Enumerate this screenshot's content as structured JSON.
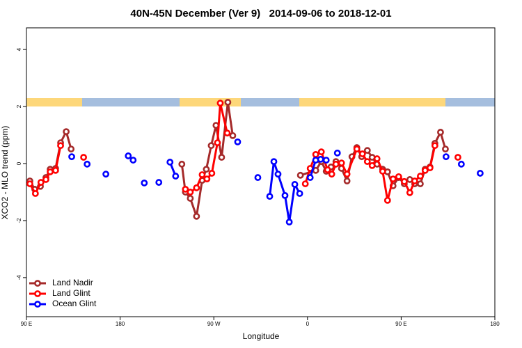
{
  "chart_data": {
    "type": "line",
    "title": "40N-45N December (Ver 9)   2014-09-06 to 2018-12-01",
    "x_label": "Longitude",
    "y_label": "XCO2 - MLO trend (ppm)",
    "xlim": [
      90,
      540
    ],
    "ylim": [
      -5.37,
      4.76
    ],
    "xticks": [
      {
        "value": 90,
        "label": "90 E"
      },
      180,
      {
        "value": 270,
        "label": "90 W"
      },
      {
        "value": 360,
        "label": "0"
      },
      {
        "value": 450,
        "label": "90 E"
      },
      {
        "value": 540,
        "label": "180"
      }
    ],
    "yticks": [
      -4,
      -2,
      0,
      2,
      4
    ],
    "legend": "bottom-left",
    "series": [
      {
        "name": "Land Nadir",
        "color": "#a52a2a",
        "x": [
          93.3,
          98,
          103.4,
          108.7,
          112.8,
          118,
          122.8,
          128.2,
          132.9,
          null,
          239.3,
          242.7,
          247.4,
          253.4,
          258.8,
          262.8,
          267.5,
          272.1,
          277.5,
          283.5,
          288.2,
          null,
          353.2,
          367.9,
          373.3,
          378,
          382.6,
          387.3,
          392.7,
          398,
          402.7,
          407.4,
          412.1,
          417.5,
          422.1,
          426.8,
          432.2,
          436.9,
          442.2,
          447.6,
          453,
          458.3,
          463,
          468.4,
          473,
          477.7,
          482.4,
          487.8,
          492.5
        ],
        "values": [
          -0.61,
          -0.9,
          -0.8,
          -0.49,
          -0.2,
          -0.17,
          0.73,
          1.12,
          0.51,
          null,
          -0.02,
          -1.0,
          -1.22,
          -1.85,
          -0.59,
          -0.2,
          0.63,
          1.34,
          0.22,
          2.15,
          0.98,
          null,
          -0.41,
          -0.24,
          0.07,
          -0.27,
          -0.12,
          0.07,
          -0.17,
          -0.61,
          0.24,
          0.56,
          0.24,
          0.46,
          0.22,
          -0.02,
          -0.2,
          -0.29,
          -0.78,
          -0.49,
          -0.71,
          -0.56,
          -0.71,
          -0.71,
          -0.2,
          -0.12,
          0.71,
          1.1,
          0.51
        ]
      },
      {
        "name": "Land Glint",
        "color": "#ff0000",
        "x": [
          93.3,
          98.6,
          103.9,
          108.7,
          112.8,
          118,
          122.8,
          null,
          144.9,
          null,
          242.7,
          247.4,
          253.4,
          258.8,
          263.4,
          268.1,
          273.5,
          276.2,
          282.9,
          null,
          357.9,
          362.6,
          367.9,
          373.3,
          379.3,
          383.3,
          387.3,
          392.7,
          398,
          407.4,
          412.8,
          417.5,
          422.1,
          426.8,
          432.2,
          436.9,
          442.2,
          447.6,
          453,
          458.3,
          463,
          468.4,
          473,
          477.7,
          482.4,
          null,
          504.5
        ],
        "values": [
          -0.71,
          -1.05,
          -0.66,
          -0.56,
          -0.29,
          -0.24,
          0.63,
          null,
          0.22,
          null,
          -0.9,
          -1.0,
          -0.85,
          -0.39,
          -0.54,
          -0.34,
          0.73,
          2.12,
          1.07,
          null,
          -0.71,
          -0.17,
          0.32,
          0.41,
          -0.22,
          -0.37,
          -0.02,
          0.02,
          -0.37,
          0.51,
          0.34,
          0.07,
          -0.07,
          0.17,
          -0.27,
          -1.29,
          -0.54,
          -0.46,
          -0.63,
          -1.02,
          -0.61,
          -0.44,
          -0.24,
          -0.15,
          0.63,
          null,
          0.22
        ]
      },
      {
        "name": "Ocean Glint",
        "color": "#0000ff",
        "x": [
          133.5,
          null,
          148.3,
          null,
          166.3,
          null,
          187.8,
          192.5,
          null,
          203.2,
          null,
          217.2,
          null,
          227.9,
          233.3,
          null,
          292.9,
          null,
          312.3,
          null,
          323.7,
          327.7,
          331.7,
          338.4,
          342.5,
          347.8,
          352.5,
          null,
          362.6,
          367.9,
          372.6,
          378,
          null,
          388.7,
          null,
          493.1,
          null,
          507.8,
          null,
          525.9
        ],
        "values": [
          0.24,
          null,
          -0.02,
          null,
          -0.37,
          null,
          0.27,
          0.12,
          null,
          -0.68,
          null,
          -0.66,
          null,
          0.05,
          -0.44,
          null,
          0.76,
          null,
          -0.49,
          null,
          -1.15,
          0.07,
          -0.37,
          -1.12,
          -2.05,
          -0.73,
          -1.05,
          null,
          -0.49,
          0.12,
          0.15,
          0.12,
          null,
          0.37,
          null,
          0.24,
          null,
          -0.02,
          null,
          -0.34
        ]
      }
    ]
  }
}
